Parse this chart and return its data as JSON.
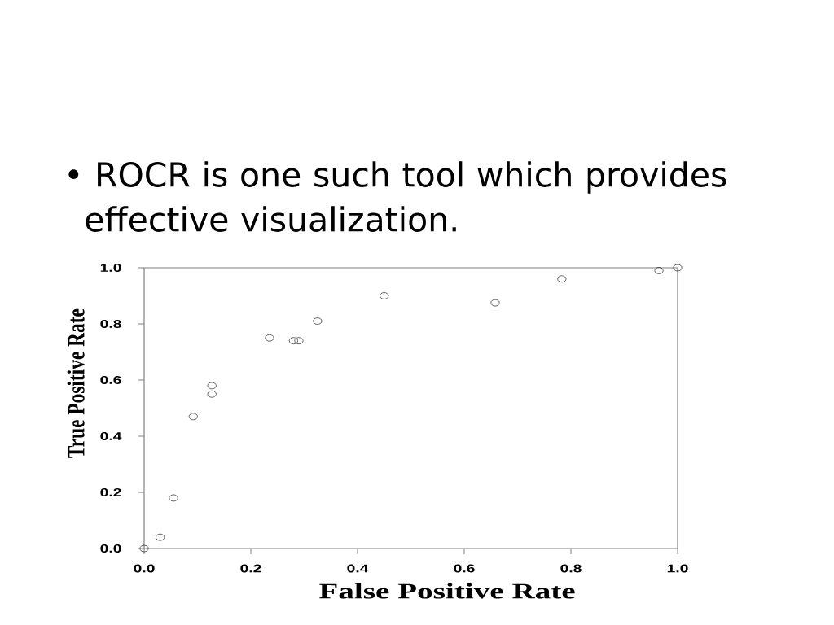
{
  "chart_data": {
    "type": "scatter",
    "title": "• ROCR is one such tool which provides effective visualization.",
    "xlabel": "False Positive Rate",
    "ylabel": "True Positive Rate",
    "x": [
      0,
      0.03,
      0.055,
      0.092,
      0.127,
      0.127,
      0.235,
      0.28,
      0.29,
      0.325,
      0.45,
      0.658,
      0.783,
      0.965,
      1
    ],
    "values": [
      0,
      0.04,
      0.18,
      0.47,
      0.55,
      0.58,
      0.75,
      0.74,
      0.74,
      0.81,
      0.9,
      0.875,
      0.96,
      0.99,
      1
    ],
    "color": "#000000",
    "marker": "circle",
    "grid": false,
    "xlim": [
      0,
      1
    ],
    "ylim": [
      0,
      1
    ],
    "xticks": [
      {
        "value": 0,
        "label": "0.0"
      },
      {
        "value": 0.2,
        "label": "0.2"
      },
      {
        "value": 0.4,
        "label": "0.4"
      },
      {
        "value": 0.6,
        "label": "0.6"
      },
      {
        "value": 0.8,
        "label": "0.8"
      },
      {
        "value": 1,
        "label": "1.0"
      }
    ],
    "yticks": [
      {
        "value": 0,
        "label": "0.0"
      },
      {
        "value": 0.2,
        "label": "0.2"
      },
      {
        "value": 0.4,
        "label": "0.4"
      },
      {
        "value": 0.6,
        "label": "0.6"
      },
      {
        "value": 0.8,
        "label": "0.8"
      },
      {
        "value": 1,
        "label": "1.0"
      }
    ]
  }
}
